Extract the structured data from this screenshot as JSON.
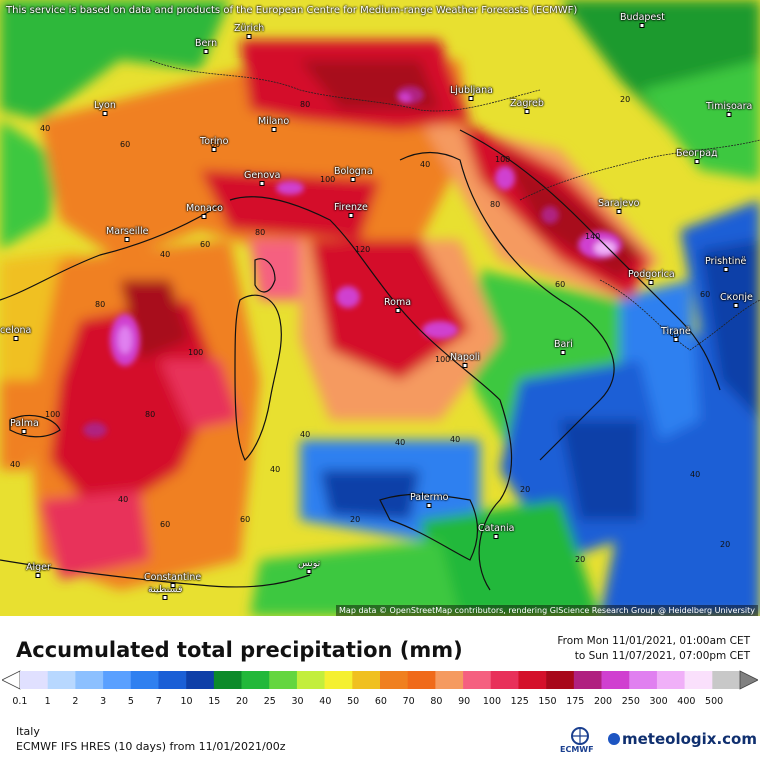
{
  "notice": "This service is based on data and products of the European Centre for Medium-range Weather Forecasts (ECMWF)",
  "attribution": "Map data © OpenStreetMap contributors, rendering GIScience Research Group @ Heidelberg University",
  "title": "Accumulated total precipitation (mm)",
  "period": {
    "from": "From Mon 11/01/2021, 01:00am CET",
    "to": "to Sun 11/07/2021, 07:00pm CET"
  },
  "region": "Italy",
  "model": "ECMWF IFS HRES (10 days)  from  11/01/2021/00z",
  "logos": {
    "ecmwf": "ECMWF",
    "meteologix": "meteologix.com"
  },
  "cities": {
    "bern": "Bern",
    "zurich": "Zürich",
    "budapest": "Budapest",
    "lyon": "Lyon",
    "milano": "Milano",
    "torino": "Torino",
    "ljubljana": "Ljubljana",
    "zagreb": "Zagreb",
    "timisoara": "Timișoara",
    "beograd": "Београд",
    "genova": "Genova",
    "bologna": "Bologna",
    "monaco": "Monaco",
    "firenze": "Firenze",
    "marseille": "Marseille",
    "sarajevo": "Sarajevo",
    "podgorica": "Podgorica",
    "pristine": "Prishtinë",
    "skopje": "Скопје",
    "roma": "Roma",
    "tirane": "Tiranë",
    "barcelona": "celona",
    "bari": "Bari",
    "napoli": "Napoli",
    "palma": "Palma",
    "palermo": "Palermo",
    "catania": "Catania",
    "tunis": "تونس",
    "alger": "Alger",
    "constantine": "Constantine",
    "constantine_ar": "قسنطينة"
  },
  "scale": {
    "ticks": [
      "0.1",
      "1",
      "2",
      "3",
      "5",
      "7",
      "10",
      "15",
      "20",
      "25",
      "30",
      "40",
      "50",
      "60",
      "70",
      "80",
      "90",
      "100",
      "125",
      "150",
      "175",
      "200",
      "250",
      "300",
      "400",
      "500"
    ],
    "colors": [
      "#e0e0ff",
      "#b8d8ff",
      "#8cc0ff",
      "#5aa0ff",
      "#2f80f0",
      "#1b5fd6",
      "#0f3fa8",
      "#0c8a2a",
      "#22b83a",
      "#64d640",
      "#c3ee3c",
      "#f5f030",
      "#f0c020",
      "#f08020",
      "#f06a1a",
      "#f59a60",
      "#f56080",
      "#e8305a",
      "#d4102a",
      "#a8081a",
      "#b02080",
      "#d040d0",
      "#e080f0",
      "#f0b0f8",
      "#fae0fc",
      "#c8c8c8"
    ]
  },
  "labels": {
    "iso": [
      "40",
      "60",
      "80",
      "100",
      "120",
      "140",
      "20",
      "40",
      "60",
      "80",
      "100",
      "40",
      "60",
      "80",
      "100",
      "40",
      "20",
      "40",
      "60",
      "80",
      "100",
      "40",
      "20",
      "40",
      "60",
      "40",
      "20",
      "40",
      "80",
      "100",
      "40",
      "60",
      "20",
      "40",
      "60"
    ]
  }
}
